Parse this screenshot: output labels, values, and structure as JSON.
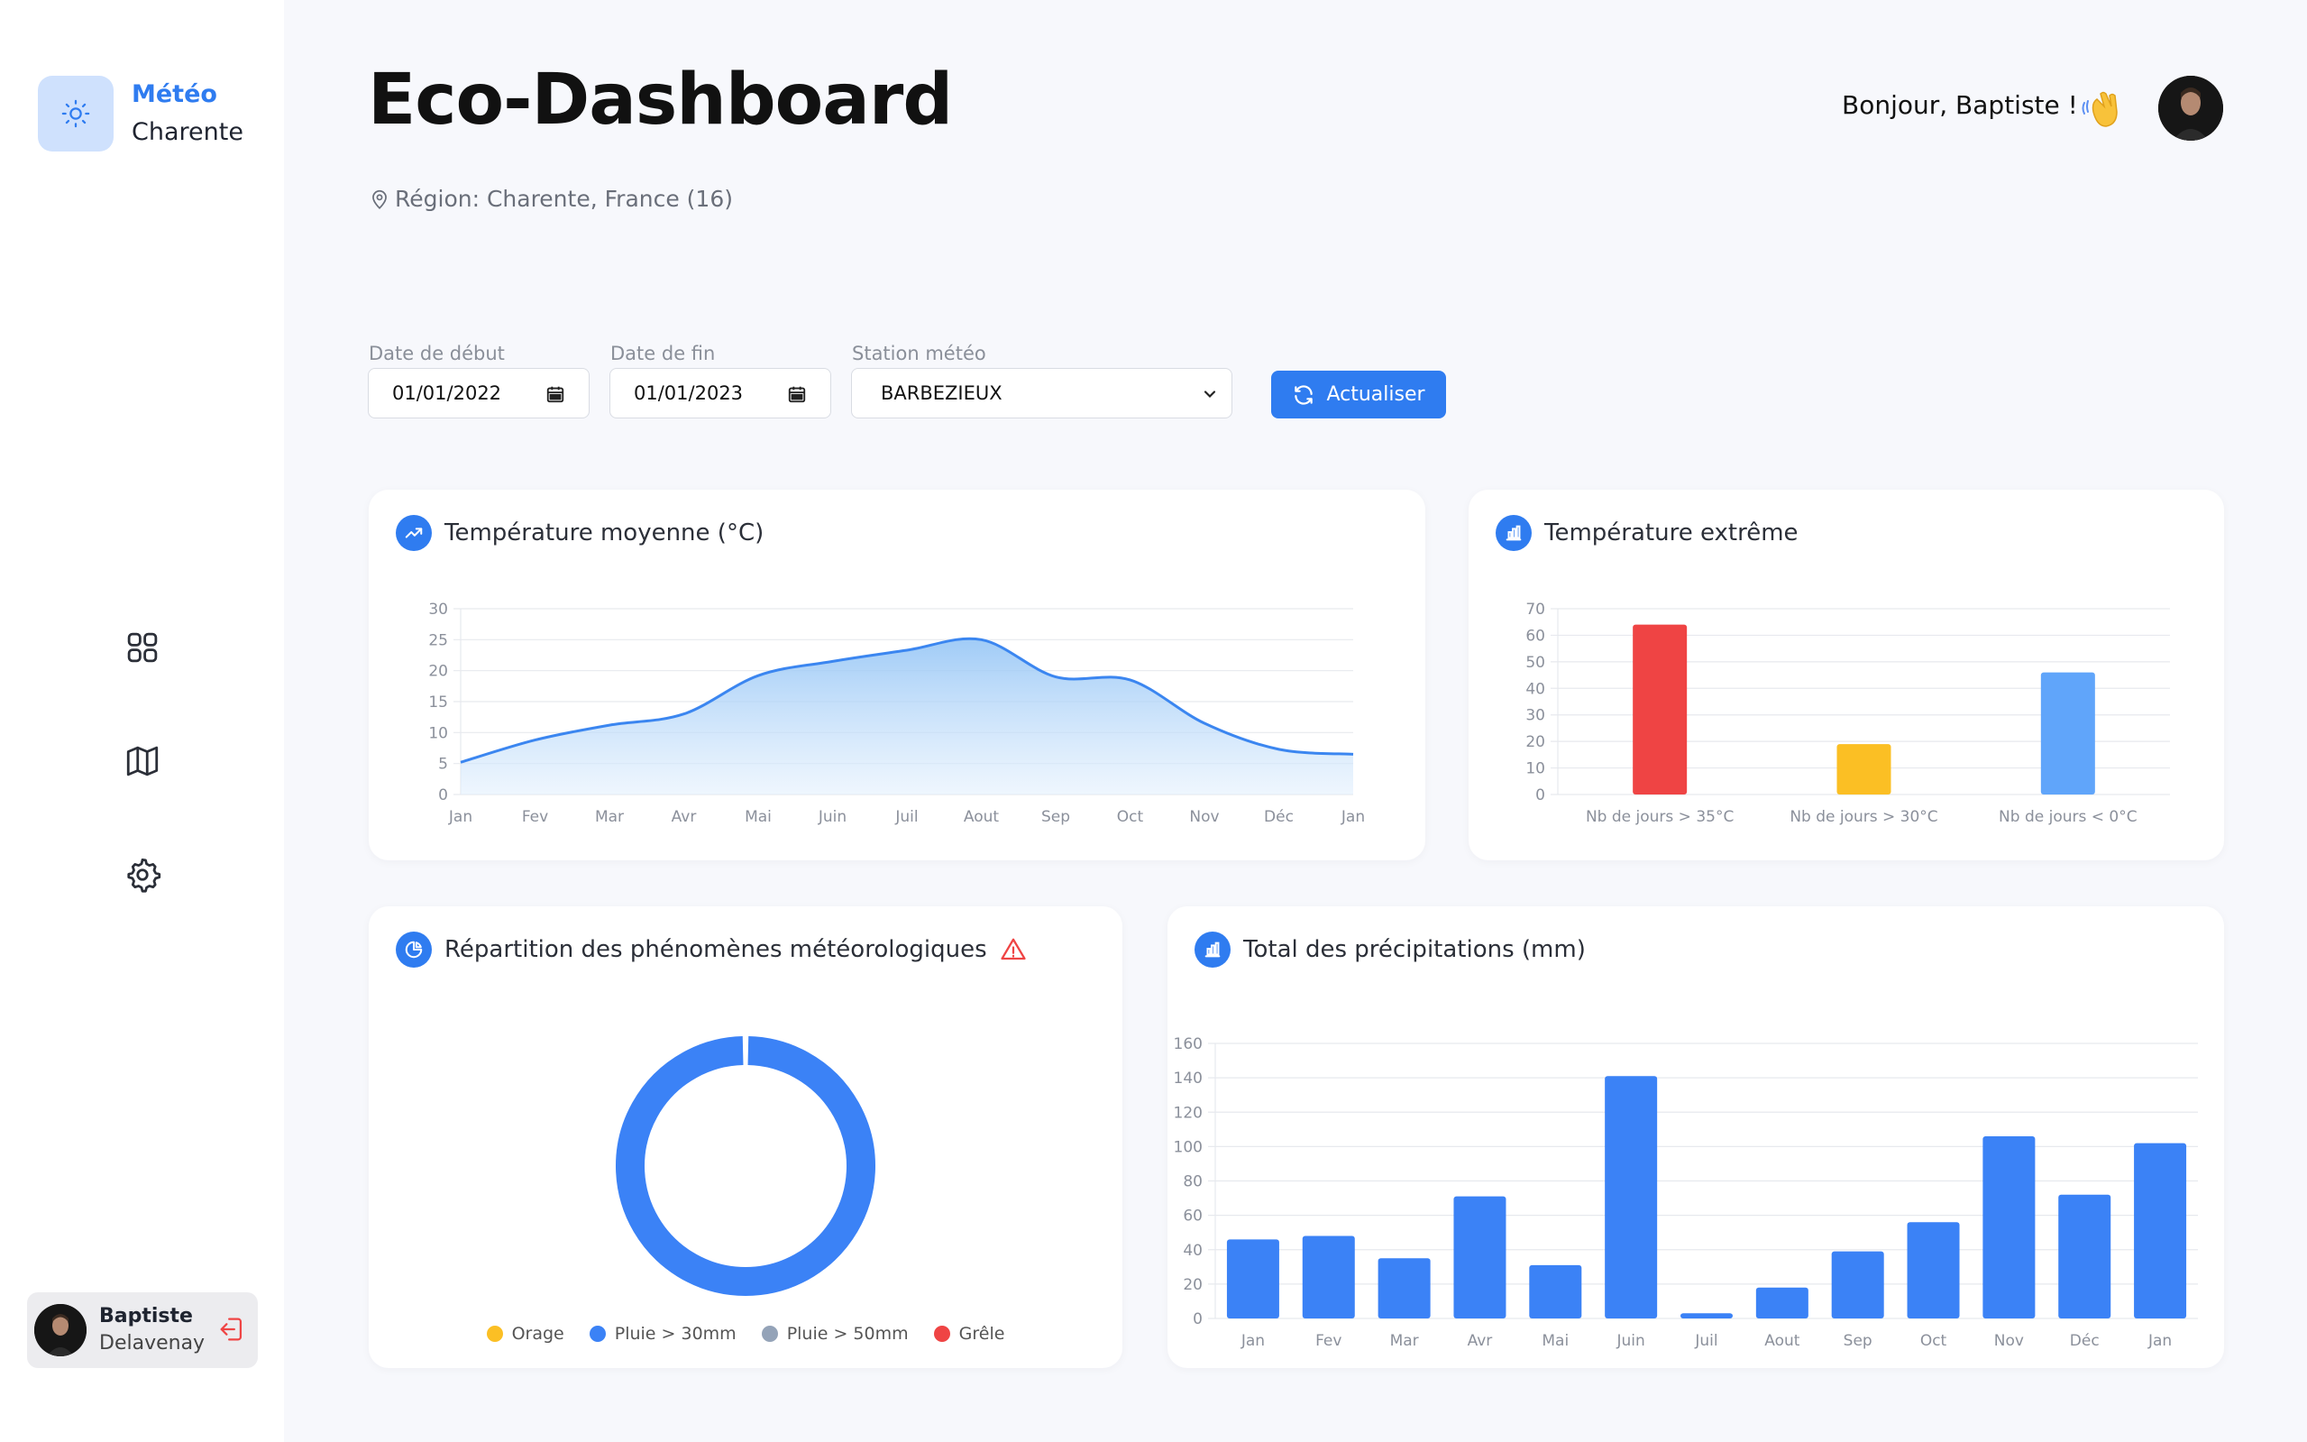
{
  "brand": {
    "line1": "Météo",
    "line2": "Charente"
  },
  "sidebar": {
    "nav": [
      {
        "icon": "grid-icon"
      },
      {
        "icon": "map-icon"
      },
      {
        "icon": "gear-icon"
      }
    ]
  },
  "user": {
    "first_name": "Baptiste",
    "last_name": "Delavenay"
  },
  "header": {
    "title": "Eco-Dashboard",
    "region": "Région: Charente, France (16)",
    "greeting": "Bonjour, Baptiste !",
    "wave": "👋"
  },
  "filters": {
    "start_label": "Date de début",
    "start_value": "01/01/2022",
    "end_label": "Date de fin",
    "end_value": "01/01/2023",
    "station_label": "Station météo",
    "station_value": "BARBEZIEUX",
    "refresh_label": "Actualiser"
  },
  "cards": {
    "avg_temp": {
      "title": "Température moyenne (°C)"
    },
    "extreme_temp": {
      "title": "Température extrême"
    },
    "phenomena": {
      "title": "Répartition des phénomènes météorologiques"
    },
    "precip": {
      "title": "Total des précipitations (mm)"
    }
  },
  "colors": {
    "accent": "#2f7cf0",
    "red": "#ef4444",
    "yellow": "#fbbf24",
    "light_blue": "#60a5fa",
    "gray": "#94a3b8"
  },
  "chart_data": [
    {
      "type": "area",
      "title": "Température moyenne (°C)",
      "categories": [
        "Jan",
        "Fev",
        "Mar",
        "Avr",
        "Mai",
        "Juin",
        "Juil",
        "Aout",
        "Sep",
        "Oct",
        "Nov",
        "Déc",
        "Jan"
      ],
      "values": [
        5.2,
        8.8,
        11.2,
        13,
        19.2,
        21.5,
        23.3,
        25,
        19,
        18.5,
        11.5,
        7.3,
        6.5
      ],
      "yticks": [
        0,
        5,
        10,
        15,
        20,
        25,
        30
      ],
      "ylim": [
        0,
        30
      ],
      "grid": true
    },
    {
      "type": "bar",
      "title": "Température extrême",
      "categories": [
        "Nb de jours > 35°C",
        "Nb de jours > 30°C",
        "Nb de jours < 0°C"
      ],
      "values": [
        64,
        19,
        46
      ],
      "colors": [
        "#ef4444",
        "#fbbf24",
        "#60a5fa"
      ],
      "yticks": [
        0,
        10,
        20,
        30,
        40,
        50,
        60,
        70
      ],
      "ylim": [
        0,
        70
      ],
      "grid": true
    },
    {
      "type": "pie",
      "title": "Répartition des phénomènes météorologiques",
      "labels": [
        "Orage",
        "Pluie > 30mm",
        "Pluie > 50mm",
        "Grêle"
      ],
      "values": [
        0,
        1,
        0,
        0
      ],
      "colors": [
        "#fbbf24",
        "#3b82f6",
        "#94a3b8",
        "#ef4444"
      ],
      "legend": "bottom"
    },
    {
      "type": "bar",
      "title": "Total des précipitations (mm)",
      "categories": [
        "Jan",
        "Fev",
        "Mar",
        "Avr",
        "Mai",
        "Juin",
        "Juil",
        "Aout",
        "Sep",
        "Oct",
        "Nov",
        "Déc",
        "Jan"
      ],
      "values": [
        46,
        48,
        35,
        71,
        31,
        141,
        3,
        18,
        39,
        56,
        106,
        72,
        102
      ],
      "yticks": [
        0,
        20,
        40,
        60,
        80,
        100,
        120,
        140,
        160
      ],
      "ylim": [
        0,
        160
      ],
      "grid": true
    }
  ]
}
